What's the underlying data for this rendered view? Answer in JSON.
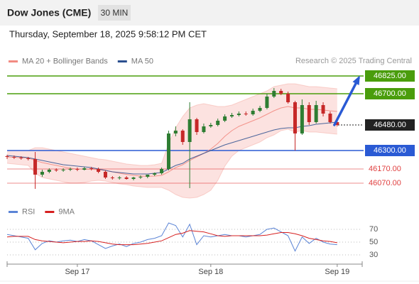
{
  "header": {
    "title": "Dow Jones (CME)",
    "timeframe": "30 MIN",
    "datetime": "Thursday, September 18, 2025 9:58:12 PM CET"
  },
  "chart_data": [
    {
      "type": "candlestick",
      "source": "Research © 2025 Trading Central",
      "categories": [
        null,
        null,
        null,
        null,
        null,
        null,
        null,
        null,
        null,
        null,
        "Sep 17",
        null,
        null,
        null,
        null,
        null,
        null,
        null,
        null,
        null,
        null,
        null,
        null,
        null,
        null,
        null,
        null,
        null,
        null,
        "Sep 18",
        null,
        null,
        null,
        null,
        null,
        null,
        null,
        null,
        null,
        null,
        null,
        null,
        null,
        null,
        null,
        null,
        null,
        "Sep 19"
      ],
      "open": [
        46260,
        46255,
        46250,
        46245,
        46240,
        46130,
        46150,
        46165,
        46160,
        46165,
        46170,
        46165,
        46175,
        46170,
        46150,
        46110,
        46105,
        46110,
        46100,
        46110,
        46115,
        46130,
        46140,
        46170,
        46420,
        46440,
        46360,
        46520,
        46430,
        46470,
        46480,
        46510,
        46540,
        46550,
        46560,
        46555,
        46580,
        46600,
        46680,
        46720,
        46700,
        46640,
        46420,
        46620,
        46500,
        46620,
        46560,
        46500
      ],
      "high": [
        46270,
        46265,
        46260,
        46255,
        46290,
        46165,
        46175,
        46175,
        46175,
        46180,
        46180,
        46185,
        46185,
        46180,
        46160,
        46120,
        46120,
        46120,
        46115,
        46125,
        46130,
        46145,
        46180,
        46440,
        46470,
        46450,
        46640,
        46530,
        46490,
        46495,
        46525,
        46555,
        46565,
        46575,
        46575,
        46595,
        46615,
        46700,
        46740,
        46735,
        46715,
        46650,
        46660,
        46640,
        46650,
        46640,
        46575,
        46515
      ],
      "low": [
        46240,
        46240,
        46235,
        46230,
        46030,
        46115,
        46140,
        46150,
        46150,
        46155,
        46155,
        46160,
        46160,
        46140,
        46100,
        46095,
        46095,
        46095,
        46090,
        46100,
        46105,
        46120,
        46130,
        46160,
        46400,
        46340,
        46035,
        46410,
        46420,
        46460,
        46470,
        46500,
        46530,
        46540,
        46545,
        46545,
        46570,
        46590,
        46670,
        46690,
        46630,
        46300,
        46410,
        46480,
        46490,
        46540,
        46490,
        46470
      ],
      "close": [
        46255,
        46250,
        46245,
        46240,
        46130,
        46150,
        46165,
        46160,
        46165,
        46170,
        46165,
        46175,
        46170,
        46150,
        46110,
        46105,
        46110,
        46100,
        46110,
        46115,
        46130,
        46140,
        46170,
        46420,
        46440,
        46360,
        46520,
        46430,
        46470,
        46480,
        46510,
        46540,
        46550,
        46560,
        46555,
        46580,
        46600,
        46680,
        46720,
        46700,
        46640,
        46420,
        46620,
        46500,
        46620,
        46560,
        46500,
        46480
      ],
      "up_color": "#2e7d32",
      "down_color": "#c62828",
      "series": [
        {
          "name": "MA 20 + Bollinger Bands",
          "color": "#f28b82",
          "values": [
            46255,
            46252,
            46250,
            46248,
            46230,
            46215,
            46205,
            46195,
            46185,
            46175,
            46170,
            46168,
            46168,
            46165,
            46160,
            46150,
            46140,
            46132,
            46125,
            46120,
            46118,
            46120,
            46125,
            46150,
            46180,
            46200,
            46230,
            46255,
            46280,
            46310,
            46350,
            46400,
            46440,
            46470,
            46490,
            46510,
            46530,
            46555,
            46580,
            46600,
            46610,
            46600,
            46600,
            46590,
            46590,
            46585,
            46580,
            46575
          ],
          "upper": [
            46300,
            46300,
            46300,
            46300,
            46320,
            46320,
            46310,
            46300,
            46290,
            46280,
            46270,
            46260,
            46250,
            46240,
            46235,
            46225,
            46215,
            46205,
            46200,
            46195,
            46195,
            46200,
            46210,
            46350,
            46460,
            46540,
            46600,
            46620,
            46630,
            46620,
            46610,
            46610,
            46620,
            46640,
            46660,
            46680,
            46700,
            46720,
            46750,
            46760,
            46770,
            46770,
            46760,
            46750,
            46750,
            46745,
            46740,
            46735
          ],
          "lower": [
            46210,
            46205,
            46200,
            46195,
            46140,
            46110,
            46100,
            46090,
            46080,
            46070,
            46070,
            46075,
            46085,
            46090,
            46085,
            46075,
            46065,
            46060,
            46050,
            46045,
            46040,
            46040,
            46040,
            46020,
            45990,
            45970,
            45965,
            45970,
            45990,
            46020,
            46090,
            46190,
            46260,
            46300,
            46320,
            46340,
            46360,
            46390,
            46410,
            46440,
            46450,
            46430,
            46440,
            46430,
            46430,
            46425,
            46420,
            46415
          ]
        },
        {
          "name": "MA 50",
          "color": "#2b4f8f",
          "values": [
            46265,
            46260,
            46255,
            46250,
            46240,
            46230,
            46220,
            46210,
            46200,
            46195,
            46190,
            46185,
            46180,
            46170,
            46160,
            46150,
            46145,
            46140,
            46135,
            46135,
            46135,
            46140,
            46145,
            46170,
            46195,
            46210,
            46240,
            46260,
            46280,
            46300,
            46320,
            46340,
            46355,
            46370,
            46385,
            46400,
            46415,
            46430,
            46445,
            46455,
            46460,
            46460,
            46470,
            46475,
            46485,
            46490,
            46495,
            46500
          ]
        }
      ],
      "levels": [
        {
          "value": 46825,
          "label": "46825.00",
          "color": "#4a9d0c",
          "style": "box"
        },
        {
          "value": 46700,
          "label": "46700.00",
          "color": "#4a9d0c",
          "style": "box"
        },
        {
          "value": 46480,
          "label": "46480.00",
          "color": "#222222",
          "style": "pivot"
        },
        {
          "value": 46300,
          "label": "46300.00",
          "color": "#2a5ad4",
          "style": "box"
        },
        {
          "value": 46170,
          "label": "46170.00",
          "color": "#e04040",
          "style": "text"
        },
        {
          "value": 46070,
          "label": "46070.00",
          "color": "#e04040",
          "style": "text"
        }
      ],
      "ylim": [
        45950,
        46885
      ]
    },
    {
      "type": "line",
      "series": [
        {
          "name": "RSI",
          "color": "#5b84d6",
          "values": [
            62,
            60,
            58,
            56,
            38,
            48,
            52,
            50,
            52,
            53,
            51,
            54,
            52,
            46,
            40,
            44,
            47,
            43,
            48,
            50,
            54,
            56,
            60,
            80,
            76,
            58,
            78,
            46,
            60,
            58,
            60,
            62,
            60,
            60,
            58,
            60,
            62,
            70,
            72,
            66,
            60,
            36,
            58,
            48,
            56,
            50,
            47,
            46
          ]
        },
        {
          "name": "9MA",
          "color": "#d62020",
          "values": [
            58,
            59,
            59,
            59,
            54,
            52,
            51,
            50,
            49,
            50,
            51,
            51,
            52,
            51,
            49,
            47,
            46,
            46,
            46,
            47,
            48,
            50,
            52,
            57,
            62,
            64,
            68,
            67,
            66,
            63,
            60,
            59,
            60,
            60,
            60,
            60,
            60,
            61,
            63,
            65,
            65,
            63,
            60,
            56,
            54,
            52,
            51,
            49
          ]
        }
      ],
      "ylim": [
        20,
        90
      ],
      "yticks": [
        30,
        50,
        70
      ],
      "grid": true
    }
  ]
}
